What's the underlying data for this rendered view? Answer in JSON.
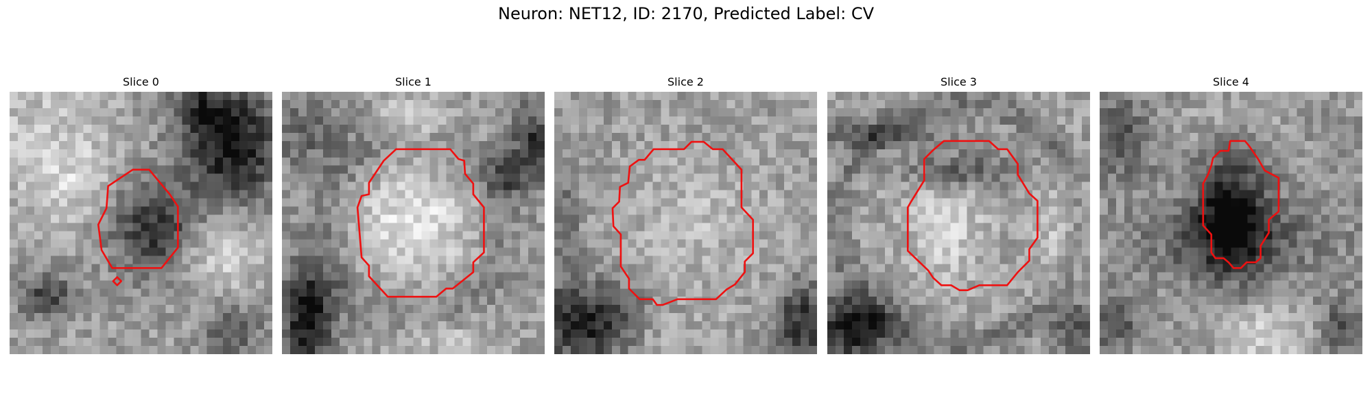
{
  "figure": {
    "title": "Neuron: NET12, ID: 2170, Predicted Label: CV"
  },
  "panels": [
    {
      "title": "Slice 0"
    },
    {
      "title": "Slice 1"
    },
    {
      "title": "Slice 2"
    },
    {
      "title": "Slice 3"
    },
    {
      "title": "Slice 4"
    }
  ],
  "colors": {
    "outline": "#ee1111",
    "background": "#ffffff"
  },
  "colormap": "gray"
}
